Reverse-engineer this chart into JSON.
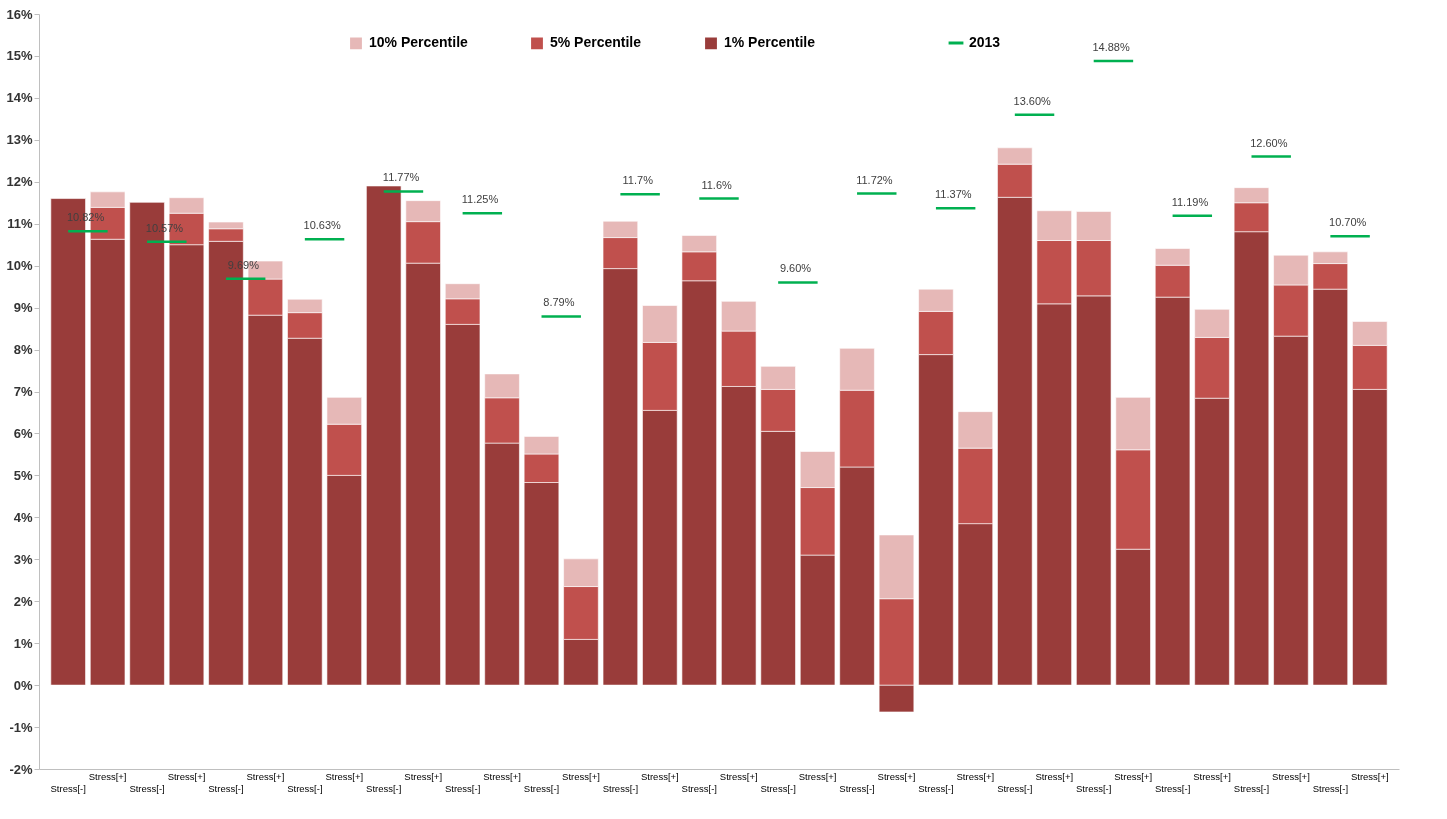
{
  "chart_data": {
    "type": "bar",
    "categories": [
      "Stress[-]",
      "Stress[+]",
      "Stress[-]",
      "Stress[+]",
      "Stress[-]",
      "Stress[+]",
      "Stress[-]",
      "Stress[+]",
      "Stress[-]",
      "Stress[+]",
      "Stress[-]",
      "Stress[+]",
      "Stress[-]",
      "Stress[+]",
      "Stress[-]",
      "Stress[+]",
      "Stress[-]",
      "Stress[+]",
      "Stress[-]",
      "Stress[+]",
      "Stress[-]",
      "Stress[+]",
      "Stress[-]",
      "Stress[+]",
      "Stress[-]",
      "Stress[+]",
      "Stress[-]",
      "Stress[+]",
      "Stress[-]",
      "Stress[+]",
      "Stress[-]",
      "Stress[+]",
      "Stress[-]",
      "Stress[+]"
    ],
    "stacked": true,
    "series": [
      {
        "name": "1% Percentile",
        "color": "#993c3a",
        "values": [
          11.6,
          10.63,
          11.51,
          10.5,
          10.58,
          8.82,
          8.27,
          5.0,
          11.9,
          10.06,
          8.6,
          5.77,
          4.83,
          1.09,
          9.93,
          6.55,
          9.64,
          7.12,
          6.05,
          3.1,
          5.2,
          -0.64,
          7.88,
          3.85,
          11.63,
          9.09,
          9.28,
          3.24,
          9.25,
          6.84,
          10.81,
          8.32,
          9.44,
          7.05
        ]
      },
      {
        "name": "5% Percentile",
        "color": "#c0504d",
        "values": [
          null,
          0.76,
          null,
          0.75,
          0.3,
          0.86,
          0.61,
          1.22,
          null,
          0.99,
          0.61,
          1.08,
          0.68,
          1.26,
          0.74,
          1.62,
          0.69,
          1.32,
          1.0,
          1.61,
          1.83,
          2.06,
          1.03,
          1.8,
          0.79,
          1.51,
          1.32,
          2.37,
          0.76,
          1.45,
          0.69,
          1.22,
          0.61,
          1.05
        ]
      },
      {
        "name": "10% Percentile",
        "color": "#e6b8b7",
        "values": [
          null,
          0.37,
          null,
          0.37,
          0.16,
          0.43,
          0.32,
          0.64,
          null,
          0.5,
          0.36,
          0.57,
          0.42,
          0.66,
          0.39,
          0.88,
          0.39,
          0.71,
          0.55,
          0.86,
          1.0,
          1.52,
          0.53,
          0.87,
          0.39,
          0.71,
          0.69,
          1.25,
          0.4,
          0.67,
          0.36,
          0.71,
          0.28,
          0.57
        ]
      },
      {
        "name": "2013",
        "type": "line",
        "color": "#00b050",
        "values": [
          10.82,
          10.82,
          10.57,
          10.57,
          9.69,
          9.69,
          10.63,
          10.63,
          11.77,
          11.77,
          11.25,
          11.25,
          8.79,
          8.79,
          11.7,
          11.7,
          11.6,
          11.6,
          9.6,
          9.6,
          11.72,
          11.72,
          11.37,
          11.37,
          13.6,
          13.6,
          14.88,
          14.88,
          11.19,
          11.19,
          12.6,
          12.6,
          10.7,
          10.7
        ],
        "value_labels": [
          "10.82%",
          null,
          "10.57%",
          null,
          "9.69%",
          null,
          "10.63%",
          null,
          "11.77%",
          null,
          "11.25%",
          null,
          "8.79%",
          null,
          "11.7%",
          null,
          "11.6%",
          null,
          "9.60%",
          null,
          "11.72%",
          null,
          "11.37%",
          null,
          "13.60%",
          null,
          "14.88%",
          null,
          "11.19%",
          null,
          "12.60%",
          null,
          "10.70%",
          null
        ]
      }
    ],
    "ylim": [
      -2,
      16
    ],
    "yticks": [
      {
        "value": -2,
        "label": "-2%"
      },
      {
        "value": -1,
        "label": "-1%"
      },
      {
        "value": 0,
        "label": "0%"
      },
      {
        "value": 1,
        "label": "1%"
      },
      {
        "value": 2,
        "label": "2%"
      },
      {
        "value": 3,
        "label": "3%"
      },
      {
        "value": 4,
        "label": "4%"
      },
      {
        "value": 5,
        "label": "5%"
      },
      {
        "value": 6,
        "label": "6%"
      },
      {
        "value": 7,
        "label": "7%"
      },
      {
        "value": 8,
        "label": "8%"
      },
      {
        "value": 9,
        "label": "9%"
      },
      {
        "value": 10,
        "label": "10%"
      },
      {
        "value": 11,
        "label": "11%"
      },
      {
        "value": 12,
        "label": "12%"
      },
      {
        "value": 13,
        "label": "13%"
      },
      {
        "value": 14,
        "label": "14%"
      },
      {
        "value": 15,
        "label": "15%"
      },
      {
        "value": 16,
        "label": "16%"
      }
    ],
    "grid": false,
    "legend": "top"
  }
}
